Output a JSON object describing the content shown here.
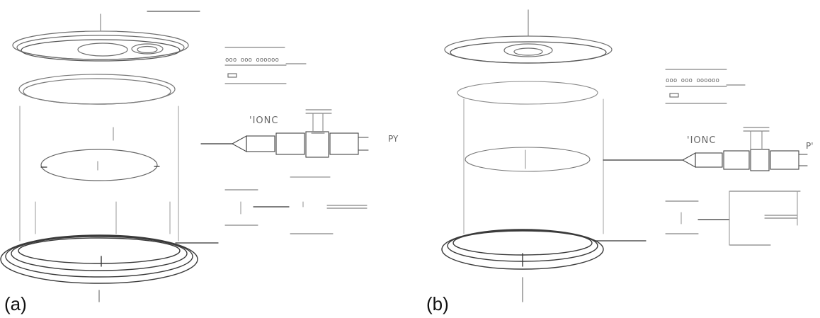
{
  "panels": [
    {
      "id": "a",
      "label": "(a)",
      "device_labels": {
        "ironic": "'IONC",
        "output": "PY"
      }
    },
    {
      "id": "b",
      "label": "(b)",
      "device_labels": {
        "ironic": "'IONC",
        "output": "P'"
      }
    }
  ],
  "colors": {
    "ink": "#111111",
    "line_light": "#7a7a7a",
    "line_mid": "#4a4a4a",
    "background": "#ffffff"
  }
}
